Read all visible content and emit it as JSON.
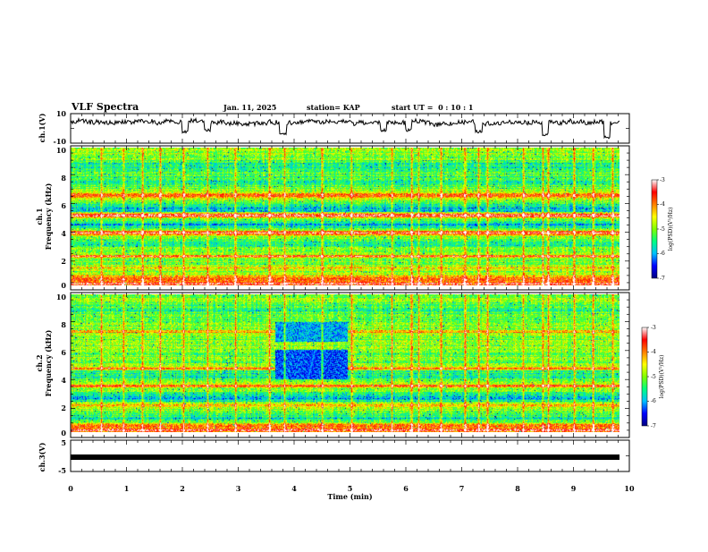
{
  "chart_data": {
    "type": "heatmap",
    "title": "VLF Spectra",
    "date": "Jan. 11, 2025",
    "station": "station= KAP",
    "start_ut": "start UT =  0 : 10 : 1",
    "x_axis": {
      "label": "Time (min)",
      "range": [
        0,
        10
      ],
      "tick_labels": [
        "0",
        "1",
        "2",
        "3",
        "4",
        "5",
        "6",
        "7",
        "8",
        "9",
        "10"
      ],
      "data_end": 9.83
    },
    "panels": [
      {
        "id": "ch1-voltage",
        "type": "line",
        "ylabel": "ch.1(V)",
        "ylim": [
          -10,
          10
        ],
        "tick_labels": [
          "10",
          "-10"
        ],
        "baseline": 3.5,
        "noise_amplitude": 3.0,
        "dips": [
          {
            "t": 2.05,
            "value": -3
          },
          {
            "t": 2.45,
            "value": -2
          },
          {
            "t": 3.8,
            "value": -5
          },
          {
            "t": 5.6,
            "value": -2
          },
          {
            "t": 6.05,
            "value": -2
          },
          {
            "t": 7.3,
            "value": -3
          },
          {
            "t": 8.5,
            "value": -5
          },
          {
            "t": 9.6,
            "value": -7
          }
        ]
      },
      {
        "id": "ch1-spectrogram",
        "type": "heatmap",
        "ylabel": "ch.1",
        "ylabel2": "Frequency (kHz)",
        "ylim": [
          0,
          10
        ],
        "tick_labels": [
          "0",
          "2",
          "4",
          "6",
          "8",
          "10"
        ],
        "base_level": -5.0,
        "bands": [
          {
            "f": 0.1,
            "w": 0.25,
            "level": -3.3
          },
          {
            "f": 0.55,
            "w": 0.2,
            "level": -3.9
          },
          {
            "f": 1.25,
            "w": 0.15,
            "level": -4.3
          },
          {
            "f": 2.1,
            "w": 0.1,
            "level": -3.7
          },
          {
            "f": 3.0,
            "w": 0.2,
            "level": -5.6
          },
          {
            "f": 3.8,
            "w": 0.18,
            "level": -3.4
          },
          {
            "f": 4.45,
            "w": 0.3,
            "level": -5.8
          },
          {
            "f": 5.1,
            "w": 0.15,
            "level": -3.2
          },
          {
            "f": 5.6,
            "w": 0.35,
            "level": -5.9
          },
          {
            "f": 6.5,
            "w": 0.2,
            "level": -3.7
          },
          {
            "f": 7.6,
            "w": 0.45,
            "level": -5.5
          },
          {
            "f": 8.7,
            "w": 0.45,
            "level": -5.5
          }
        ],
        "quiet_patches": []
      },
      {
        "id": "ch2-spectrogram",
        "type": "heatmap",
        "ylabel": "ch.2",
        "ylabel2": "Frequency (kHz)",
        "ylim": [
          0,
          10
        ],
        "tick_labels": [
          "0",
          "2",
          "4",
          "6",
          "8",
          "10"
        ],
        "base_level": -5.0,
        "bands": [
          {
            "f": 0.1,
            "w": 0.2,
            "level": -3.4
          },
          {
            "f": 0.45,
            "w": 0.15,
            "level": -4.0
          },
          {
            "f": 1.0,
            "w": 0.3,
            "level": -5.6
          },
          {
            "f": 1.9,
            "w": 0.15,
            "level": -4.2
          },
          {
            "f": 2.5,
            "w": 0.35,
            "level": -5.8
          },
          {
            "f": 3.35,
            "w": 0.12,
            "level": -3.8
          },
          {
            "f": 4.1,
            "w": 0.3,
            "level": -5.7
          },
          {
            "f": 4.65,
            "w": 0.12,
            "level": -3.9
          },
          {
            "f": 7.3,
            "w": 0.12,
            "level": -4.1
          },
          {
            "f": 9.0,
            "w": 0.5,
            "level": -5.4
          }
        ],
        "quiet_patches": [
          {
            "t0": 3.65,
            "t1": 4.95,
            "f0": 3.8,
            "f1": 6.0,
            "level": -6.3
          },
          {
            "t0": 3.65,
            "t1": 4.95,
            "f0": 6.6,
            "f1": 8.0,
            "level": -6.0
          }
        ]
      },
      {
        "id": "ch3-voltage",
        "type": "line",
        "ylabel": "ch.3(V)",
        "ylim": [
          -5,
          5
        ],
        "tick_labels": [
          "5",
          "-5"
        ],
        "baseline": 0.0,
        "noise_amplitude": 0.0,
        "dips": []
      }
    ],
    "vertical_events": [
      0.55,
      0.95,
      1.28,
      1.6,
      2.02,
      2.45,
      2.95,
      3.55,
      3.82,
      4.5,
      5.02,
      5.75,
      6.1,
      6.22,
      6.62,
      7.05,
      7.3,
      7.45,
      8.1,
      8.45,
      8.55,
      9.0,
      9.35,
      9.7
    ],
    "colorbar": {
      "label": "log(PSD)(V²/Hz)",
      "range": [
        -7,
        -3
      ],
      "tick_labels": [
        "-3",
        "-4",
        "-5",
        "-6",
        "-7"
      ],
      "colors": [
        "#000080",
        "#0000ff",
        "#00bfff",
        "#00ff80",
        "#80ff00",
        "#ffff00",
        "#ff8000",
        "#ff0000",
        "#ffffff"
      ]
    }
  }
}
